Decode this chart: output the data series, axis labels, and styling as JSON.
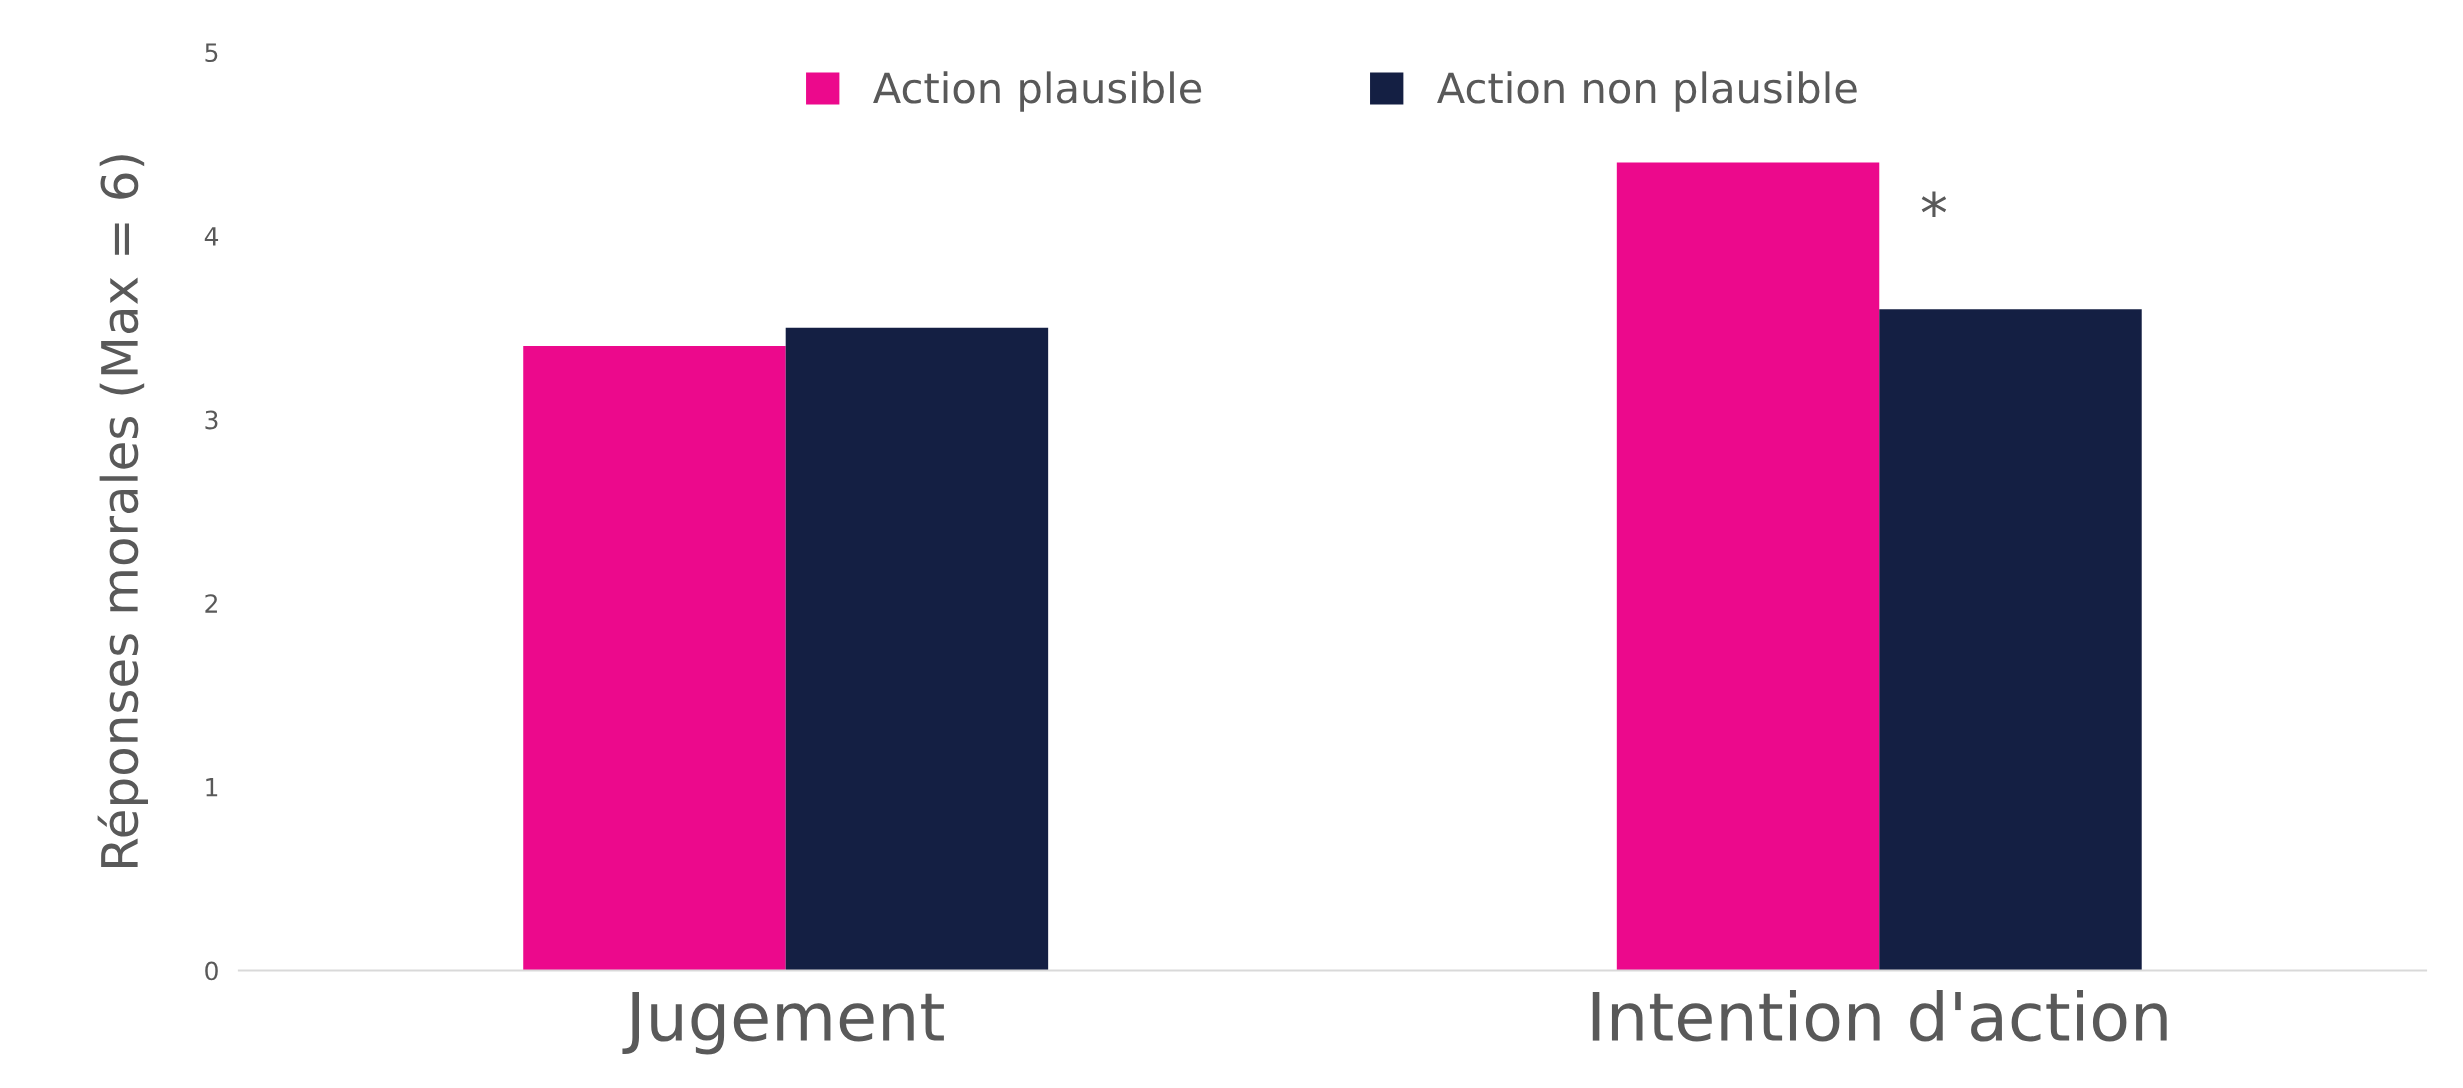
{
  "chart_data": {
    "type": "bar",
    "ylabel": "Réponses morales (Max = 6)",
    "categories": [
      "Jugement",
      "Intention d'action"
    ],
    "series": [
      {
        "name": "Action plausible",
        "color": "#ec098c",
        "values": [
          3.4,
          4.4
        ]
      },
      {
        "name": "Action non plausible",
        "color": "#141f43",
        "values": [
          3.5,
          3.6
        ]
      }
    ],
    "ylim": [
      0,
      5
    ],
    "yticks": [
      0,
      1,
      2,
      3,
      4,
      5
    ],
    "grid": false,
    "legend": "top",
    "annotations": [
      {
        "text": "*",
        "x": "Intention d'action",
        "y": 4.1
      }
    ]
  }
}
